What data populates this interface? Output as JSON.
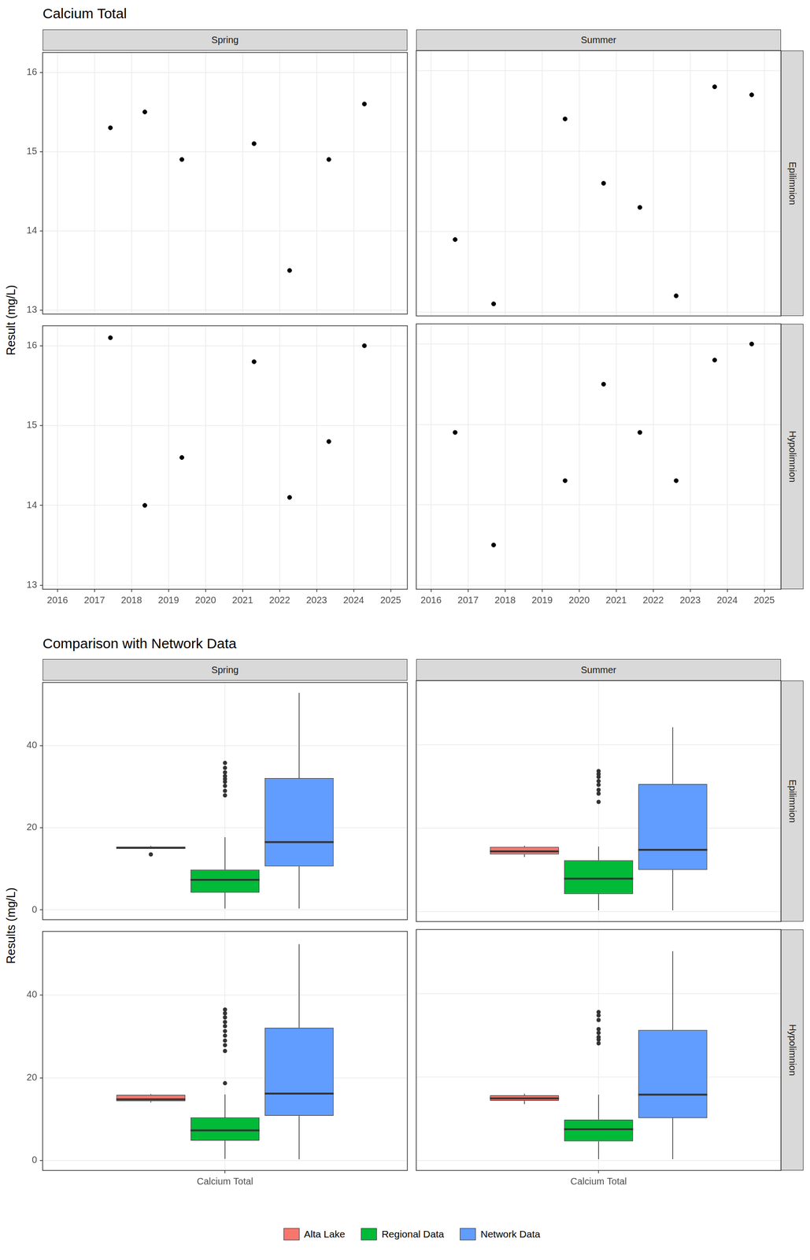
{
  "chart_data": [
    {
      "type": "scatter",
      "title": "Calcium Total",
      "y_label": "Result (mg/L)",
      "columns": [
        "Spring",
        "Summer"
      ],
      "rows": [
        "Epilimnion",
        "Hypolimnion"
      ],
      "xlim": [
        2015.6,
        2025.45
      ],
      "xticks": [
        2016,
        2017,
        2018,
        2019,
        2020,
        2021,
        2022,
        2023,
        2024,
        2025
      ],
      "ylim": [
        12.95,
        16.25
      ],
      "yticks": [
        13,
        14,
        15,
        16
      ],
      "grid": true,
      "color": "#000000",
      "panels": [
        {
          "column": "Spring",
          "row": "Epilimnion",
          "x": [
            2017.43,
            2018.36,
            2019.36,
            2021.31,
            2022.27,
            2023.33,
            2024.29
          ],
          "values": [
            15.3,
            15.5,
            14.9,
            15.1,
            13.5,
            14.9,
            15.6
          ]
        },
        {
          "column": "Summer",
          "row": "Epilimnion",
          "x": [
            2016.65,
            2017.69,
            2019.62,
            2020.66,
            2021.64,
            2022.62,
            2023.66,
            2024.66
          ],
          "values": [
            13.9,
            13.1,
            15.4,
            14.6,
            14.3,
            13.2,
            15.8,
            15.7
          ]
        },
        {
          "column": "Spring",
          "row": "Hypolimnion",
          "x": [
            2017.43,
            2018.36,
            2019.36,
            2021.31,
            2022.27,
            2023.33,
            2024.29
          ],
          "values": [
            16.1,
            14.0,
            14.6,
            15.8,
            14.1,
            14.8,
            16.0
          ]
        },
        {
          "column": "Summer",
          "row": "Hypolimnion",
          "x": [
            2016.65,
            2017.69,
            2019.62,
            2020.66,
            2021.64,
            2022.62,
            2023.66,
            2024.66
          ],
          "values": [
            14.9,
            13.5,
            14.3,
            15.5,
            14.9,
            14.3,
            15.8,
            16.0
          ]
        }
      ]
    },
    {
      "type": "boxplot",
      "title": "Comparison with Network Data",
      "y_label": "Results (mg/L)",
      "columns": [
        "Spring",
        "Summer"
      ],
      "rows": [
        "Epilimnion",
        "Hypolimnion"
      ],
      "categories": [
        "Calcium Total"
      ],
      "ylim": [
        -2.4,
        55.4
      ],
      "yticks": [
        0,
        20,
        40
      ],
      "grid": true,
      "legend": "bottom",
      "series": [
        {
          "name": "Alta Lake",
          "color": "#F8766D"
        },
        {
          "name": "Regional Data",
          "color": "#00BA38"
        },
        {
          "name": "Network Data",
          "color": "#619CFF"
        }
      ],
      "panels": [
        {
          "column": "Spring",
          "row": "Epilimnion",
          "boxes": [
            {
              "series": "Alta Lake",
              "low": 14.9,
              "q1": 14.9,
              "median": 15.1,
              "q3": 15.4,
              "high": 15.6,
              "outliers": [
                13.5
              ]
            },
            {
              "series": "Regional Data",
              "low": 0.3,
              "q1": 4.2,
              "median": 7.3,
              "q3": 9.8,
              "high": 17.7,
              "outliers": [
                35.8,
                34.6,
                33.5,
                32.6,
                31.9,
                31.2,
                30.2,
                29.0,
                27.9
              ]
            },
            {
              "series": "Network Data",
              "low": 0.3,
              "q1": 10.6,
              "median": 16.5,
              "q3": 32.1,
              "high": 52.9,
              "outliers": []
            }
          ]
        },
        {
          "column": "Summer",
          "row": "Epilimnion",
          "boxes": [
            {
              "series": "Alta Lake",
              "low": 13.1,
              "q1": 13.7,
              "median": 14.45,
              "q3": 15.5,
              "high": 15.8,
              "outliers": []
            },
            {
              "series": "Regional Data",
              "low": 0.3,
              "q1": 4.2,
              "median": 7.9,
              "q3": 12.3,
              "high": 15.6,
              "outliers": [
                33.7,
                33.0,
                32.3,
                31.3,
                30.4,
                29.2,
                28.3,
                26.3
              ]
            },
            {
              "series": "Network Data",
              "low": 0.3,
              "q1": 10.0,
              "median": 14.8,
              "q3": 30.6,
              "high": 44.2,
              "outliers": []
            }
          ]
        },
        {
          "column": "Spring",
          "row": "Hypolimnion",
          "boxes": [
            {
              "series": "Alta Lake",
              "low": 14.0,
              "q1": 14.35,
              "median": 14.8,
              "q3": 15.9,
              "high": 16.1,
              "outliers": []
            },
            {
              "series": "Regional Data",
              "low": 0.4,
              "q1": 4.8,
              "median": 7.3,
              "q3": 10.4,
              "high": 16.0,
              "outliers": [
                36.5,
                35.6,
                34.6,
                33.5,
                32.5,
                31.3,
                30.2,
                29.0,
                27.9,
                26.5,
                18.7
              ]
            },
            {
              "series": "Network Data",
              "low": 0.3,
              "q1": 10.8,
              "median": 16.2,
              "q3": 32.1,
              "high": 52.3,
              "outliers": []
            }
          ]
        },
        {
          "column": "Summer",
          "row": "Hypolimnion",
          "boxes": [
            {
              "series": "Alta Lake",
              "low": 13.5,
              "q1": 14.3,
              "median": 14.9,
              "q3": 15.65,
              "high": 16.0,
              "outliers": []
            },
            {
              "series": "Regional Data",
              "low": 0.3,
              "q1": 4.6,
              "median": 7.5,
              "q3": 9.8,
              "high": 15.8,
              "outliers": [
                35.6,
                34.8,
                33.7,
                31.5,
                30.6,
                29.6,
                29.0,
                28.1
              ]
            },
            {
              "series": "Network Data",
              "low": 0.3,
              "q1": 10.2,
              "median": 15.8,
              "q3": 31.3,
              "high": 50.2,
              "outliers": []
            }
          ]
        }
      ]
    }
  ]
}
